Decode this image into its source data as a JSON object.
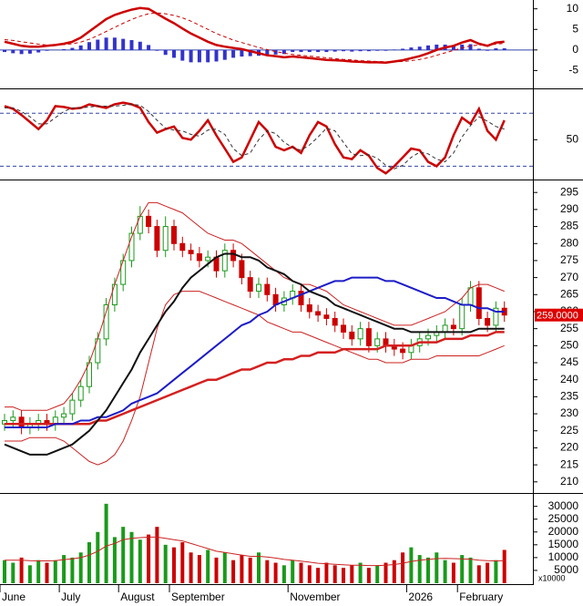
{
  "chart_data": [
    {
      "type": "line",
      "ylim": [
        -8.9,
        11.7
      ],
      "yticks": [
        10,
        5,
        0,
        -5
      ],
      "hlines": [
        0
      ],
      "hline_color": "#3344aa",
      "hline_dash": false,
      "series": [
        {
          "style": "bar",
          "color": "#3333cc",
          "values": [
            -0.5,
            -0.8,
            -1,
            -0.9,
            -0.6,
            -0.2,
            0,
            0.2,
            0.5,
            1.1,
            1.9,
            2.5,
            3,
            3,
            2.7,
            2.4,
            2,
            1.2,
            -0.2,
            -1.2,
            -1.9,
            -2.6,
            -3,
            -3,
            -3,
            -2.8,
            -2.4,
            -1.9,
            -1.6,
            -1.5,
            -1.4,
            -1.4,
            -1.1,
            -1,
            -0.5,
            -0.5,
            -0.5,
            -0.5,
            -0.5,
            -0.4,
            -0.3,
            -0.4,
            -0.3,
            -0.3,
            -0.2,
            -0.2,
            0.1,
            0.3,
            0.6,
            0.8,
            1.1,
            1.3,
            1.3,
            1.1,
            1.3,
            1.4,
            0.3,
            -0.2,
            0.4,
            0.4
          ]
        },
        {
          "color": "#cc0000",
          "width": 2.5,
          "values": [
            2,
            1.5,
            1,
            0.8,
            0.8,
            1,
            1.2,
            1.5,
            2,
            3,
            4.5,
            6,
            7.5,
            8.5,
            9.2,
            9.8,
            10.2,
            10,
            8.8,
            7.6,
            6.5,
            5.2,
            4,
            3,
            2,
            1.2,
            0.8,
            0.5,
            0.2,
            -0.3,
            -0.8,
            -1.3,
            -1.5,
            -1.8,
            -1.6,
            -1.8,
            -2,
            -2.2,
            -2.4,
            -2.5,
            -2.6,
            -2.8,
            -2.9,
            -3,
            -3,
            -3.1,
            -2.8,
            -2.5,
            -2,
            -1.5,
            -0.8,
            0,
            0.6,
            1,
            1.8,
            2.4,
            1.5,
            1,
            1.8,
            2
          ]
        },
        {
          "color": "#cc0000",
          "width": 1,
          "dash": true,
          "values": [
            2.5,
            2.3,
            2,
            1.7,
            1.4,
            1.2,
            1.2,
            1.3,
            1.5,
            1.9,
            2.6,
            3.5,
            4.5,
            5.5,
            6.5,
            7.4,
            8.2,
            8.8,
            9,
            8.8,
            8.4,
            7.8,
            7,
            6,
            5,
            4,
            3.2,
            2.4,
            1.8,
            1.2,
            0.6,
            0.1,
            -0.4,
            -0.8,
            -1.1,
            -1.3,
            -1.5,
            -1.7,
            -1.9,
            -2.1,
            -2.3,
            -2.4,
            -2.6,
            -2.7,
            -2.8,
            -2.9,
            -2.9,
            -2.8,
            -2.6,
            -2.3,
            -1.9,
            -1.3,
            -0.7,
            -0.1,
            0.5,
            1,
            1.2,
            1.2,
            1.4,
            1.6
          ]
        }
      ]
    },
    {
      "type": "line",
      "ylim": [
        7,
        105
      ],
      "yticks": [
        50
      ],
      "hlines": [
        80,
        20
      ],
      "hline_color": "#3344aa",
      "hline_dash": true,
      "series": [
        {
          "color": "#cc0000",
          "width": 2.5,
          "values": [
            88,
            85,
            78,
            70,
            62,
            72,
            88,
            87,
            85,
            86,
            90,
            88,
            86,
            90,
            92,
            90,
            86,
            70,
            58,
            62,
            65,
            52,
            50,
            60,
            72,
            55,
            40,
            25,
            30,
            50,
            70,
            60,
            42,
            38,
            42,
            35,
            55,
            70,
            65,
            45,
            30,
            28,
            38,
            32,
            18,
            12,
            20,
            30,
            40,
            38,
            25,
            20,
            30,
            55,
            75,
            68,
            85,
            60,
            50,
            72
          ]
        },
        {
          "color": "#333333",
          "width": 1,
          "dash": true,
          "values": [
            86,
            86,
            82,
            76,
            68,
            68,
            75,
            82,
            86,
            86,
            87,
            88,
            88,
            88,
            89,
            90,
            89,
            82,
            72,
            63,
            61,
            60,
            56,
            54,
            61,
            62,
            56,
            40,
            32,
            35,
            50,
            60,
            57,
            47,
            41,
            38,
            44,
            53,
            63,
            60,
            47,
            34,
            32,
            33,
            29,
            21,
            17,
            21,
            30,
            36,
            34,
            28,
            25,
            35,
            53,
            66,
            76,
            71,
            65,
            62
          ]
        }
      ]
    },
    {
      "type": "candlestick",
      "ylim": [
        207,
        298
      ],
      "yticks": [
        210,
        215,
        220,
        225,
        230,
        235,
        240,
        245,
        250,
        255,
        260,
        265,
        270,
        275,
        280,
        285,
        290,
        295
      ],
      "up_color": "#1a9a1a",
      "down_color": "#cc0000",
      "open": [
        227,
        228,
        229,
        226,
        227,
        228,
        227,
        229,
        230,
        234,
        238,
        245,
        252,
        262,
        268,
        275,
        283,
        288,
        285,
        278,
        285,
        280,
        278,
        277,
        275,
        276,
        272,
        278,
        275,
        270,
        266,
        268,
        265,
        262,
        264,
        266,
        262,
        260,
        259,
        258,
        256,
        254,
        252,
        255,
        250,
        252,
        250,
        249,
        248,
        250,
        252,
        253,
        254,
        256,
        255,
        262,
        267,
        258,
        256,
        261
      ],
      "high": [
        230,
        231,
        231,
        229,
        230,
        230,
        231,
        232,
        236,
        240,
        247,
        254,
        264,
        270,
        277,
        285,
        291,
        290,
        287,
        288,
        287,
        282,
        280,
        279,
        278,
        278,
        280,
        280,
        277,
        272,
        270,
        270,
        267,
        266,
        268,
        268,
        264,
        262,
        261,
        260,
        258,
        256,
        257,
        257,
        254,
        254,
        252,
        251,
        252,
        254,
        255,
        256,
        258,
        258,
        264,
        269,
        269,
        260,
        263,
        263
      ],
      "low": [
        225,
        226,
        224,
        224,
        225,
        225,
        225,
        227,
        228,
        232,
        236,
        243,
        250,
        260,
        266,
        273,
        281,
        283,
        276,
        276,
        278,
        276,
        275,
        273,
        273,
        270,
        270,
        273,
        268,
        264,
        264,
        263,
        260,
        260,
        262,
        260,
        258,
        257,
        256,
        254,
        252,
        250,
        250,
        248,
        248,
        248,
        247,
        246,
        246,
        248,
        250,
        251,
        252,
        253,
        253,
        260,
        256,
        254,
        254,
        257
      ],
      "close": [
        228,
        229,
        226,
        227,
        228,
        227,
        229,
        230,
        234,
        238,
        245,
        252,
        262,
        268,
        275,
        283,
        288,
        285,
        278,
        285,
        280,
        278,
        277,
        275,
        276,
        272,
        278,
        275,
        270,
        266,
        268,
        265,
        262,
        264,
        266,
        262,
        260,
        259,
        258,
        256,
        254,
        252,
        255,
        250,
        252,
        250,
        249,
        248,
        250,
        252,
        253,
        254,
        256,
        255,
        262,
        267,
        258,
        256,
        261,
        259
      ],
      "last_value_label": {
        "value": 259,
        "label": "259.0000"
      },
      "last_value_color": "#dd0000",
      "series": [
        {
          "color": "#cc2222",
          "width": 1,
          "values": [
            232,
            232,
            231,
            231,
            231,
            231,
            232,
            233,
            236,
            240,
            245,
            252,
            260,
            268,
            275,
            282,
            288,
            292,
            292,
            291,
            290,
            289,
            287,
            285,
            283,
            282,
            281,
            281,
            280,
            278,
            276,
            274,
            272,
            270,
            269,
            268,
            268,
            267,
            266,
            264,
            262,
            261,
            260,
            259,
            258,
            257,
            256,
            256,
            256,
            257,
            258,
            259,
            260,
            262,
            264,
            267,
            268,
            268,
            267,
            266
          ]
        },
        {
          "color": "#cc2222",
          "width": 1,
          "values": [
            222,
            222,
            222,
            223,
            223,
            223,
            223,
            222,
            220,
            218,
            216,
            215,
            216,
            218,
            222,
            228,
            235,
            245,
            255,
            262,
            265,
            266,
            266,
            266,
            265,
            264,
            263,
            262,
            261,
            260,
            259,
            257,
            256,
            255,
            254,
            254,
            253,
            252,
            251,
            250,
            249,
            248,
            247,
            246,
            246,
            245,
            245,
            245,
            246,
            246,
            246,
            247,
            247,
            247,
            247,
            247,
            247,
            248,
            249,
            250
          ]
        },
        {
          "color": "#d42020",
          "width": 2.5,
          "values": [
            227,
            227,
            227,
            227,
            227,
            227,
            227,
            227,
            227,
            227,
            227,
            228,
            228,
            229,
            230,
            231,
            232,
            233,
            234,
            235,
            236,
            237,
            238,
            239,
            240,
            240,
            241,
            242,
            243,
            243,
            244,
            245,
            245,
            246,
            246,
            247,
            247,
            248,
            248,
            248,
            249,
            249,
            249,
            249,
            249,
            250,
            250,
            250,
            250,
            251,
            251,
            251,
            252,
            252,
            252,
            253,
            253,
            253,
            254,
            254
          ]
        },
        {
          "color": "#1c1cc8",
          "width": 2,
          "values": [
            226,
            226,
            226,
            226,
            226,
            226,
            227,
            227,
            227,
            228,
            228,
            229,
            229,
            230,
            231,
            233,
            234,
            235,
            236,
            238,
            240,
            242,
            244,
            246,
            248,
            250,
            252,
            254,
            256,
            257,
            259,
            260,
            262,
            263,
            264,
            265,
            266,
            267,
            268,
            269,
            269,
            270,
            270,
            270,
            270,
            269,
            269,
            268,
            267,
            266,
            265,
            264,
            264,
            263,
            262,
            262,
            261,
            261,
            260,
            260
          ]
        },
        {
          "color": "#111111",
          "width": 2,
          "values": [
            221,
            220,
            219,
            218,
            218,
            218,
            219,
            220,
            221,
            223,
            225,
            228,
            231,
            235,
            239,
            243,
            248,
            252,
            256,
            260,
            263,
            267,
            270,
            272,
            274,
            276,
            277,
            277,
            276,
            276,
            275,
            273,
            272,
            271,
            269,
            268,
            266,
            265,
            264,
            262,
            261,
            260,
            259,
            258,
            257,
            256,
            255,
            255,
            254,
            254,
            254,
            254,
            254,
            254,
            254,
            254,
            255,
            255,
            255,
            255
          ]
        }
      ]
    },
    {
      "type": "bar",
      "ylim": [
        0,
        34500
      ],
      "yticks": [
        30000,
        25000,
        20000,
        15000,
        10000,
        5000
      ],
      "unit_label": "x10000",
      "up_color": "#1a9a1a",
      "down_color": "#cc0000",
      "values": [
        9000,
        8000,
        10000,
        7000,
        9000,
        8000,
        9000,
        11000,
        10000,
        12000,
        16000,
        20000,
        31000,
        18000,
        22000,
        20000,
        17000,
        19000,
        22000,
        15000,
        14000,
        16000,
        12000,
        11000,
        13000,
        10000,
        12000,
        9000,
        11000,
        10000,
        12000,
        9000,
        8000,
        7000,
        9000,
        8000,
        7000,
        6000,
        8000,
        7000,
        6000,
        7000,
        8000,
        6000,
        7000,
        8000,
        9000,
        12000,
        14000,
        11000,
        10000,
        12000,
        9000,
        8000,
        11000,
        10000,
        7000,
        8000,
        9000,
        13000
      ],
      "series": [
        {
          "color": "#cc2222",
          "width": 1,
          "values": [
            9000,
            9000,
            9000,
            8800,
            8700,
            8700,
            8800,
            9200,
            9500,
            10000,
            11000,
            12500,
            14500,
            15500,
            17000,
            17500,
            17800,
            18000,
            18000,
            17500,
            17000,
            16500,
            15500,
            14500,
            13500,
            12500,
            12000,
            11500,
            11000,
            10500,
            10500,
            10200,
            9800,
            9300,
            9000,
            8600,
            8200,
            7800,
            7600,
            7400,
            7200,
            7000,
            7000,
            6900,
            6900,
            7000,
            7300,
            7800,
            8500,
            9000,
            9300,
            9600,
            9700,
            9600,
            9500,
            9400,
            9000,
            8800,
            8700,
            8800
          ]
        }
      ],
      "xticks": [
        {
          "value": 0,
          "label": "June"
        },
        {
          "value": 7,
          "label": "July"
        },
        {
          "value": 14,
          "label": "August"
        },
        {
          "value": 20,
          "label": "September"
        },
        {
          "value": 34,
          "label": "November"
        },
        {
          "value": 48,
          "label": "2026"
        },
        {
          "value": 54,
          "label": "February"
        }
      ]
    }
  ]
}
